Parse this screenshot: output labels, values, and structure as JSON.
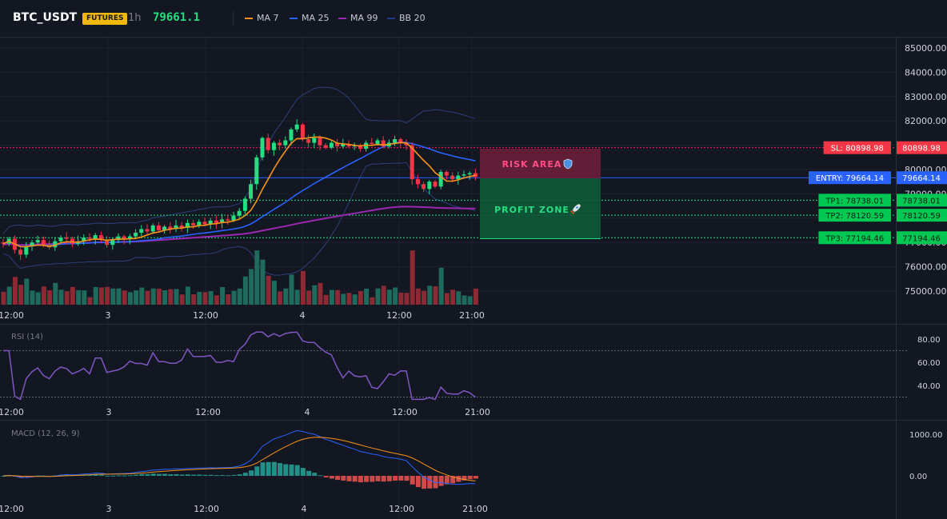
{
  "header": {
    "symbol": "BTC_USDT",
    "badge": "FUTURES",
    "timeframe": "1h",
    "price": "79661.1",
    "legend": [
      {
        "label": "MA 7",
        "color": "#f7931a"
      },
      {
        "label": "MA 25",
        "color": "#2962ff"
      },
      {
        "label": "MA 99",
        "color": "#9c27b0"
      },
      {
        "label": "BB 20",
        "color": "#1e3a8a"
      }
    ]
  },
  "price_axis": {
    "ticks": [
      "85000.00",
      "84000.00",
      "83000.00",
      "82000.00",
      "81000.00",
      "80000.00",
      "79000.00",
      "78000.00",
      "77000.00",
      "76000.00",
      "75000.00"
    ]
  },
  "time_axis": {
    "labels": [
      "12:00",
      "3",
      "12:00",
      "4",
      "12:00",
      "21:00"
    ]
  },
  "levels": [
    {
      "key": "sl",
      "label": "SL: 80898.98",
      "value": "80898.98",
      "price": 80898.98,
      "color": "#f23645",
      "line": "#e91e63"
    },
    {
      "key": "entry",
      "label": "ENTRY: 79664.14",
      "value": "79664.14",
      "price": 79664.14,
      "color": "#2962ff",
      "line": "#2962ff"
    },
    {
      "key": "tp1",
      "label": "TP1: 78738.01",
      "value": "78738.01",
      "price": 78738.01,
      "color": "#00c853",
      "line": "#26de81"
    },
    {
      "key": "tp2",
      "label": "TP2: 78120.59",
      "value": "78120.59",
      "price": 78120.59,
      "color": "#00c853",
      "line": "#26de81"
    },
    {
      "key": "tp3",
      "label": "TP3: 77194.46",
      "value": "77194.46",
      "price": 77194.46,
      "color": "#00c853",
      "line": "#26de81"
    }
  ],
  "zones": {
    "risk": {
      "label": "RISK AREA",
      "icon": "shield-icon"
    },
    "profit": {
      "label": "PROFIT ZONE",
      "icon": "rocket-icon"
    }
  },
  "rsi": {
    "title": "RSI (14)",
    "ticks": [
      "80.00",
      "60.00",
      "40.00"
    ],
    "upper": 70,
    "lower": 30,
    "color": "#7e57c2"
  },
  "macd": {
    "title": "MACD (12, 26, 9)",
    "ticks": [
      "1000.00",
      "0.00"
    ],
    "macd_color": "#2962ff",
    "signal_color": "#f7931a"
  },
  "chart_data": {
    "type": "candlestick",
    "interval": "1h",
    "colors": {
      "up": "#26de81",
      "down": "#f23645",
      "vol_up": "#1e6b5c",
      "vol_down": "#8b2a35"
    },
    "price_range": [
      74500,
      85200
    ],
    "candles_close": [
      76950,
      77150,
      76700,
      76500,
      76850,
      77000,
      77100,
      76900,
      76800,
      77050,
      77200,
      77150,
      76950,
      77050,
      77200,
      77150,
      77300,
      77100,
      76900,
      77100,
      77250,
      77150,
      77250,
      77400,
      77550,
      77450,
      77700,
      77500,
      77650,
      77550,
      77700,
      77600,
      77800,
      77700,
      77850,
      77750,
      77900,
      77800,
      77950,
      77900,
      78100,
      78300,
      78800,
      79400,
      80500,
      81300,
      80800,
      81100,
      81000,
      81200,
      81650,
      81850,
      81250,
      81100,
      81300,
      81000,
      80900,
      81100,
      80950,
      81050,
      80950,
      81000,
      80850,
      81100,
      81050,
      81200,
      80950,
      81100,
      81250,
      81100,
      81000,
      79600,
      79400,
      79200,
      79500,
      79300,
      79900,
      79750,
      79600,
      79750,
      79800,
      79850,
      79700
    ]
  }
}
